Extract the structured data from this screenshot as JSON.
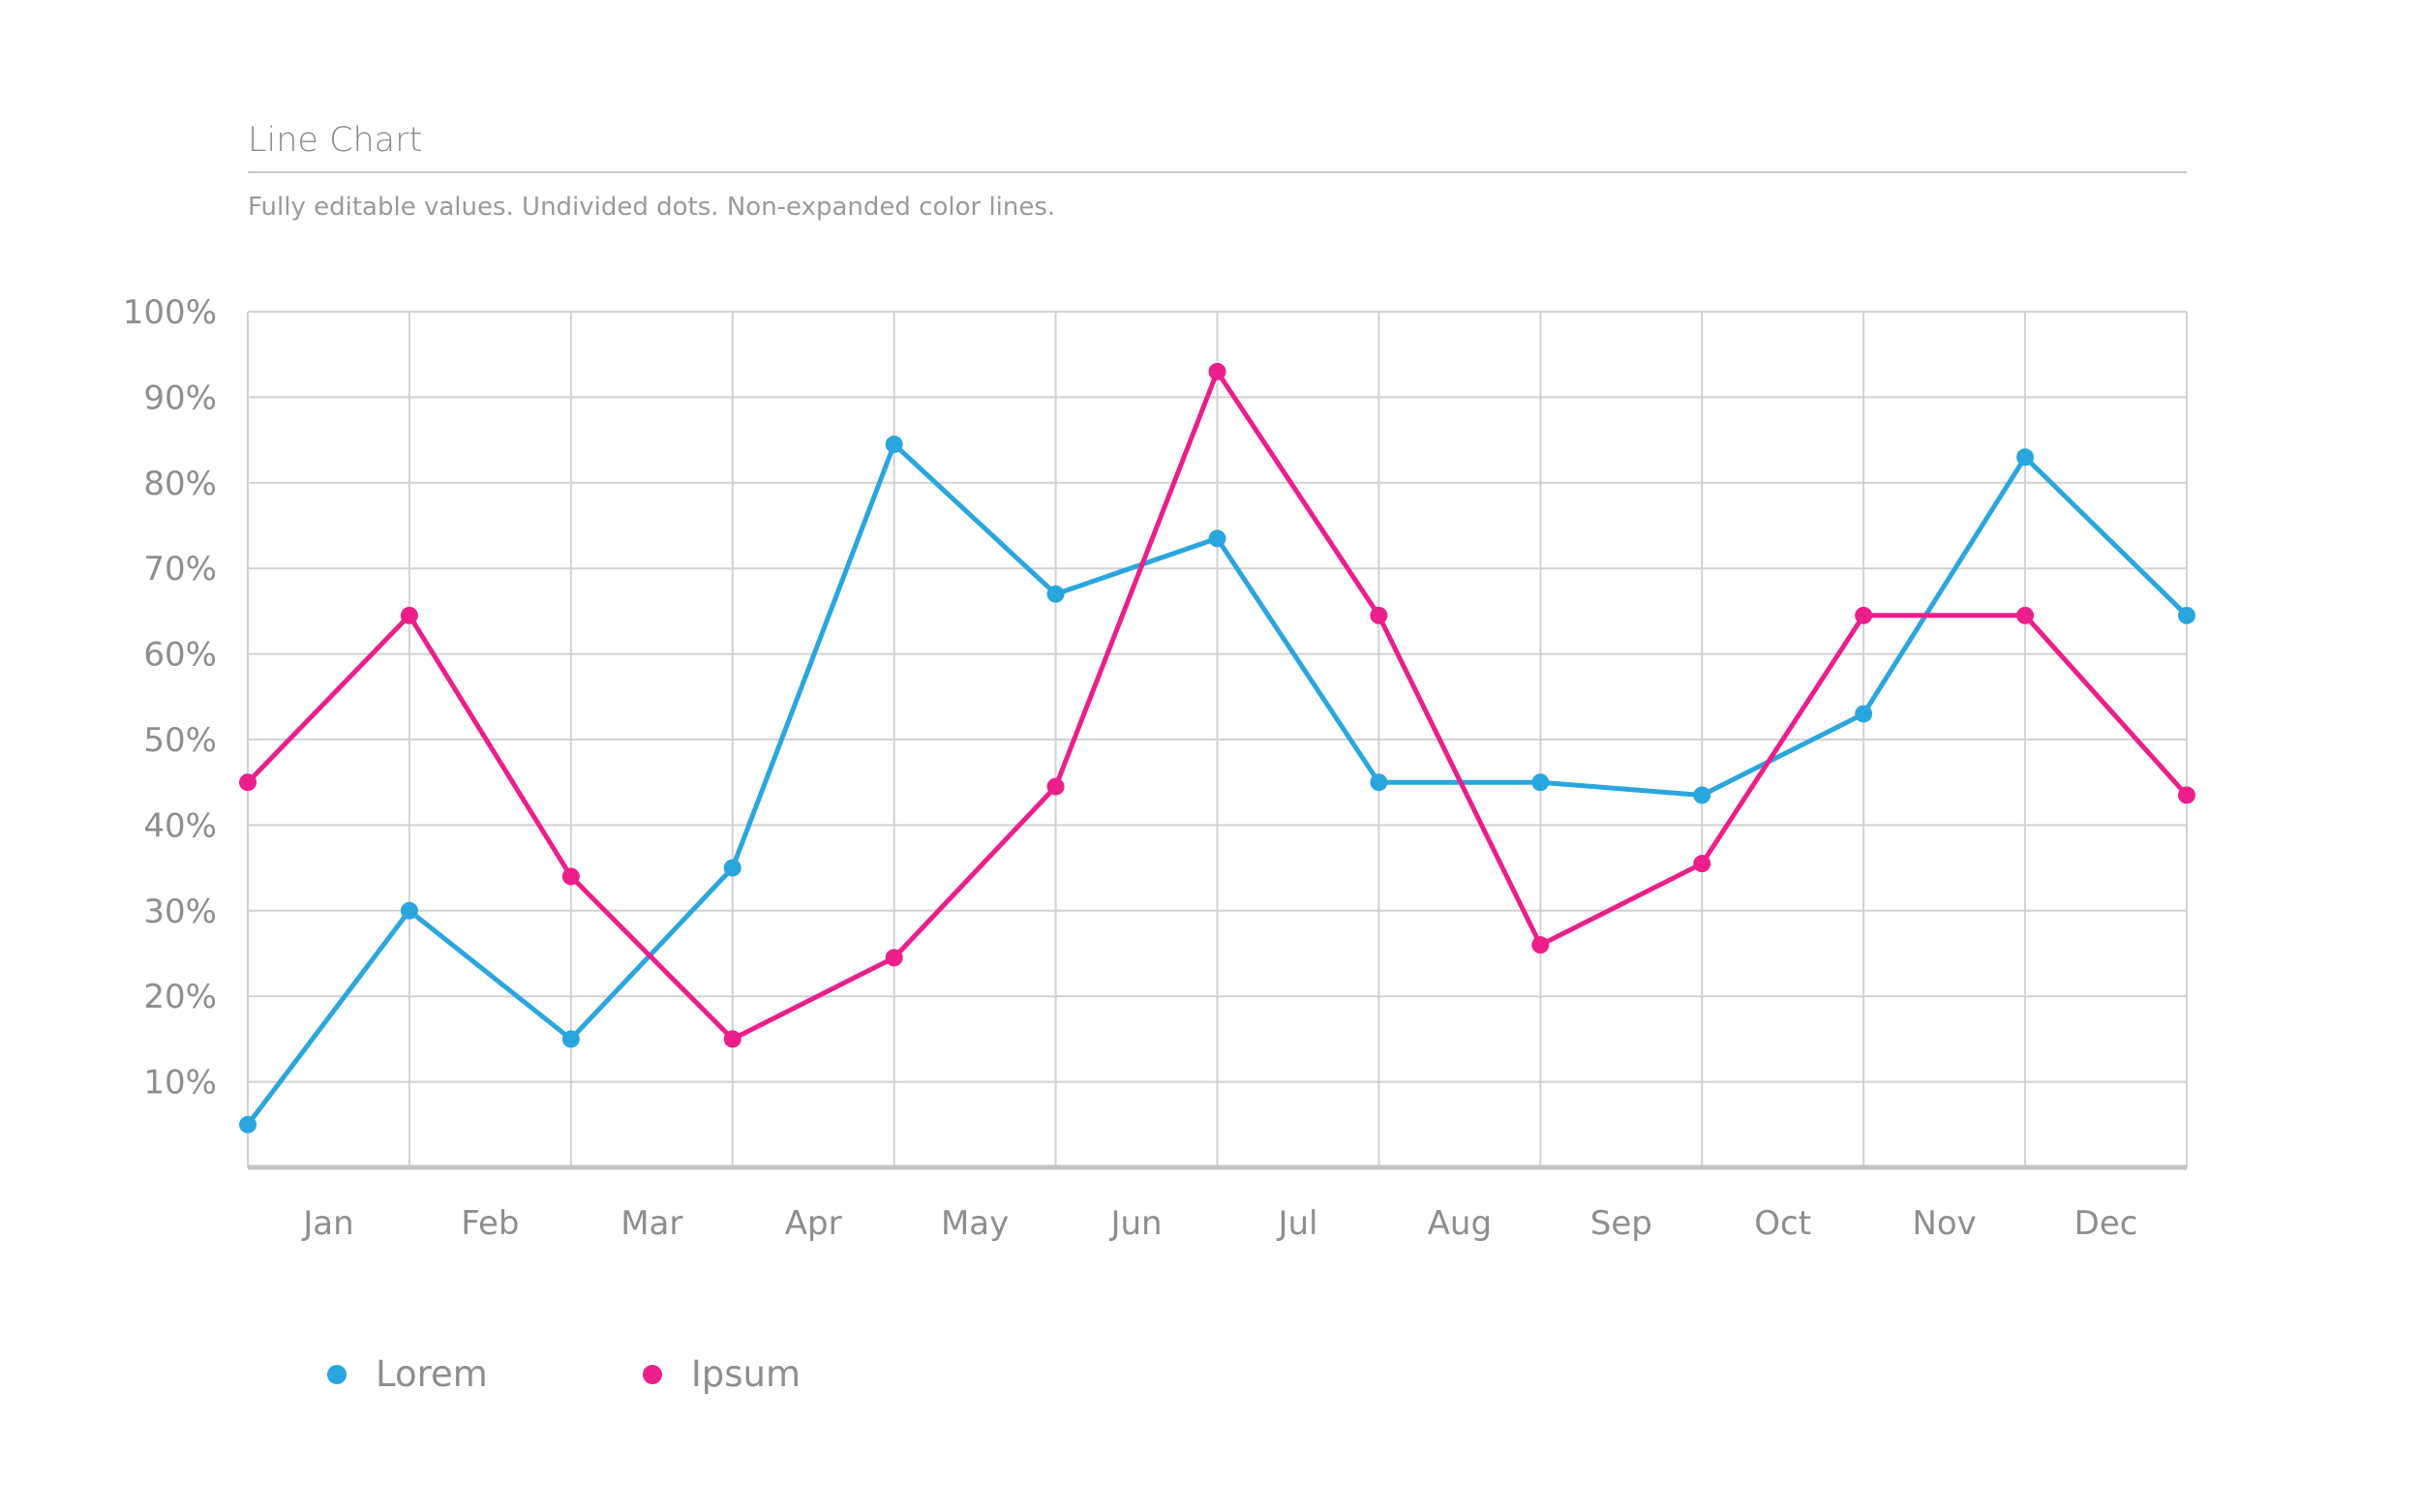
{
  "header": {
    "title": "Line Chart",
    "subtitle": "Fully editable values. Undivided dots. Non-expanded color lines."
  },
  "colors": {
    "lorem": "#2aa6de",
    "ipsum": "#ec1e8c",
    "grid": "#d2d2d2",
    "axis": "#c4c4c4"
  },
  "chart_data": {
    "type": "line",
    "title": "Line Chart",
    "subtitle": "Fully editable values. Undivided dots. Non-expanded color lines.",
    "categories": [
      "Jan",
      "Feb",
      "Mar",
      "Apr",
      "May",
      "Jun",
      "Jul",
      "Aug",
      "Sep",
      "Oct",
      "Nov",
      "Dec"
    ],
    "y_ticks": [
      "10%",
      "20%",
      "30%",
      "40%",
      "50%",
      "60%",
      "70%",
      "80%",
      "90%",
      "100%"
    ],
    "ylim": [
      0,
      100
    ],
    "x_index_range": [
      0,
      12
    ],
    "grid": true,
    "legend_position": "bottom-left",
    "series": [
      {
        "name": "Lorem",
        "color": "#2aa6de",
        "x": [
          0,
          1,
          2,
          3,
          4,
          5,
          6,
          7,
          8,
          9,
          10,
          11,
          12
        ],
        "values": [
          5,
          30,
          15,
          35,
          84.5,
          67,
          73.5,
          45,
          45,
          43.5,
          53,
          83,
          64.5
        ]
      },
      {
        "name": "Ipsum",
        "color": "#ec1e8c",
        "x": [
          0,
          1,
          2,
          3,
          4,
          5,
          6,
          7,
          8,
          9,
          10,
          11,
          12
        ],
        "values": [
          45,
          64.5,
          34,
          15,
          24.5,
          44.5,
          93,
          64.5,
          26,
          35.5,
          64.5,
          64.5,
          43.5
        ]
      }
    ]
  },
  "legend": {
    "items": [
      {
        "label": "Lorem",
        "color": "#2aa6de"
      },
      {
        "label": "Ipsum",
        "color": "#ec1e8c"
      }
    ]
  }
}
